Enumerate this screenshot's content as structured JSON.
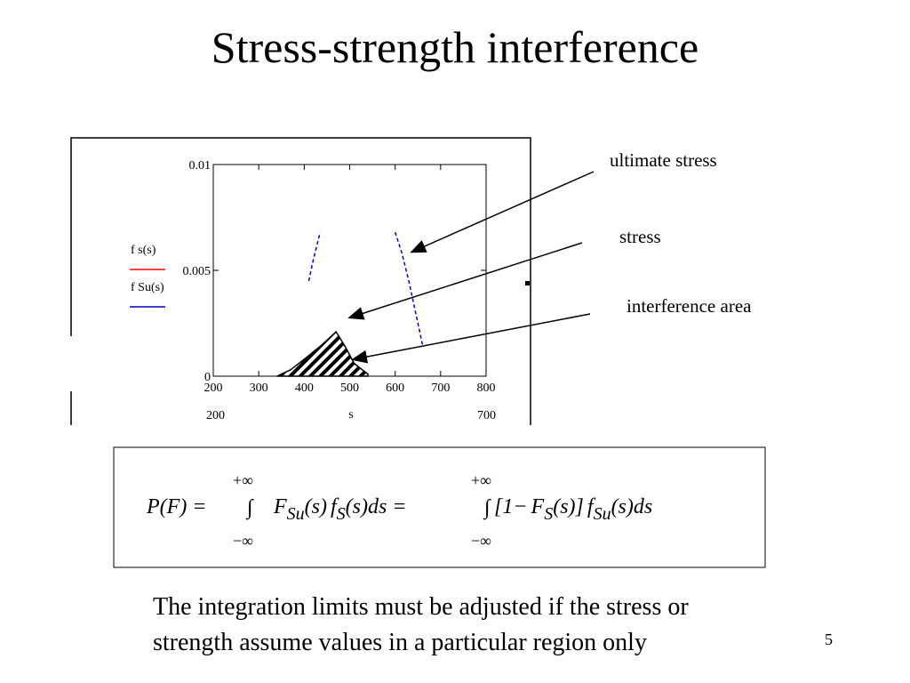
{
  "slide": {
    "title": "Stress-strength interference",
    "chart_data": {
      "type": "line",
      "xlim": [
        200,
        800
      ],
      "xticks": [
        200,
        300,
        400,
        500,
        600,
        700,
        800
      ],
      "ylim": [
        0,
        0.01
      ],
      "yticks": [
        0,
        0.005,
        0.01
      ],
      "x_range_labels": [
        "200",
        "700"
      ],
      "x_label": "s",
      "series": [
        {
          "name": "f s(s)",
          "color": "#ff0000",
          "fill": "hatch",
          "x": [
            340,
            370,
            400,
            440,
            470,
            490,
            510,
            540
          ],
          "values": [
            0,
            0.0003,
            0.0008,
            0.0015,
            0.0021,
            0.0014,
            0.0006,
            0.0001
          ]
        },
        {
          "name": "f Su(s)",
          "color": "#0000cc",
          "dash": true,
          "x": [
            410,
            420,
            435,
            500,
            600,
            615,
            630,
            645,
            660
          ],
          "values": [
            0.0045,
            0.0055,
            0.0068,
            null,
            0.0068,
            0.0058,
            0.0045,
            0.003,
            0.0015
          ]
        }
      ]
    },
    "annotations": [
      "ultimate stress",
      "stress",
      "interference area"
    ],
    "formula": {
      "lhs": "P(F) =",
      "upper": "+∞",
      "lower": "−∞",
      "integral": "∫",
      "term1": [
        "F",
        "Su",
        "(s)",
        "f",
        "S",
        "(s)ds ="
      ],
      "term2": [
        "[1−",
        "F",
        "S",
        "(s)]",
        "f",
        "Su",
        "(s)ds"
      ]
    },
    "body": [
      "The integration limits must be adjusted if the stress or",
      "strength assume values in a particular region only"
    ],
    "page_number": "5"
  }
}
